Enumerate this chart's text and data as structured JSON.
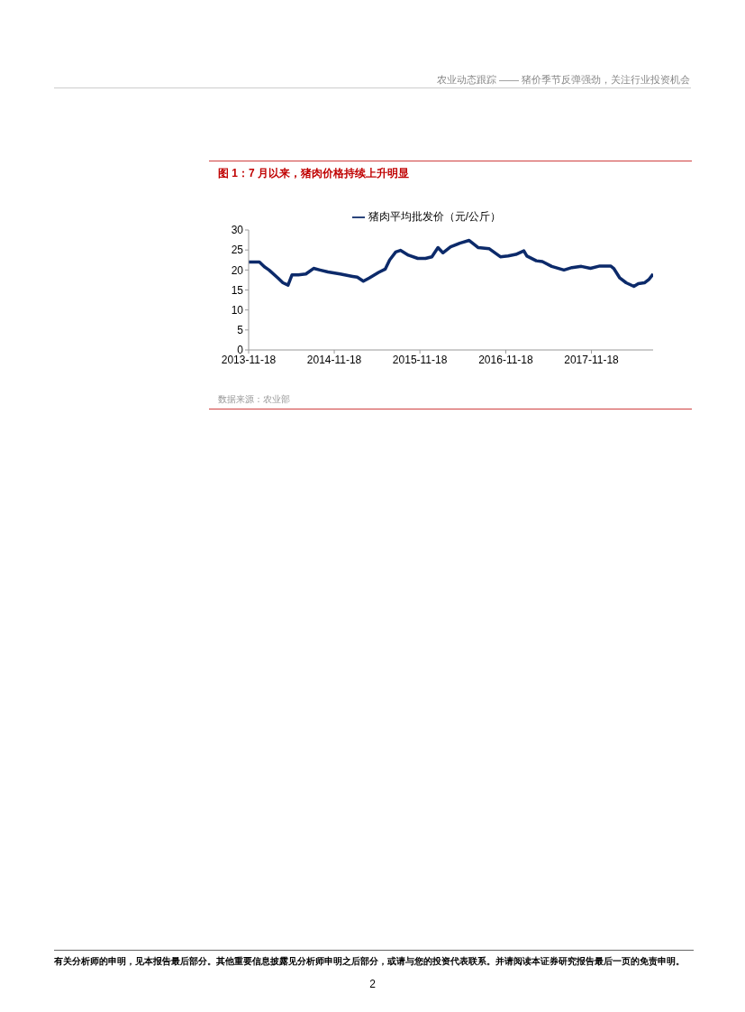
{
  "chart_data": {
    "type": "line",
    "title": "图 1：7 月以来，猪肉价格持续上升明显",
    "annotations": [
      "农业动态跟踪 —— 猪价季节反弹强劲，关注行业投资机会",
      "数据来源：农业部",
      "有关分析师的申明，见本报告最后部分。其他重要信息披露见分析师申明之后部分，或请与您的投资代表联系。并请阅读本证券研究报告最后一页的免责申明。",
      "2"
    ],
    "x": [
      "2013-11-18",
      "2014-01-03",
      "2014-01-24",
      "2014-02-13",
      "2014-03-23",
      "2014-04-13",
      "2014-05-05",
      "2014-05-22",
      "2014-06-18",
      "2014-07-20",
      "2014-08-22",
      "2014-09-18",
      "2014-10-22",
      "2014-12-13",
      "2015-02-04",
      "2015-02-24",
      "2015-03-22",
      "2015-04-16",
      "2015-05-26",
      "2015-06-23",
      "2015-07-12",
      "2015-08-07",
      "2015-08-27",
      "2015-09-30",
      "2015-11-09",
      "2015-12-12",
      "2016-01-08",
      "2016-02-03",
      "2016-02-24",
      "2016-03-28",
      "2016-05-06",
      "2016-06-15",
      "2016-07-24",
      "2016-09-09",
      "2016-10-26",
      "2016-11-28",
      "2016-12-31",
      "2017-02-03",
      "2017-02-16",
      "2017-03-28",
      "2017-04-23",
      "2017-06-02",
      "2017-07-24",
      "2017-08-27",
      "2017-10-06",
      "2017-11-14",
      "2017-12-24",
      "2018-02-08",
      "2018-02-21",
      "2018-03-19",
      "2018-04-15",
      "2018-05-18",
      "2018-06-06",
      "2018-07-02",
      "2018-07-22",
      "2018-08-08"
    ],
    "series": [
      {
        "name": "猪肉平均批发价（元/公斤）",
        "color": "#0c2a6a",
        "values": [
          22.0,
          22.0,
          20.8,
          20.0,
          18.0,
          16.8,
          16.2,
          18.8,
          18.8,
          19.0,
          20.4,
          20.0,
          19.5,
          19.0,
          18.4,
          18.2,
          17.2,
          18.0,
          19.4,
          20.2,
          22.5,
          24.5,
          24.9,
          23.7,
          22.9,
          22.9,
          23.3,
          25.6,
          24.3,
          25.8,
          26.7,
          27.4,
          25.6,
          25.3,
          23.3,
          23.5,
          23.9,
          24.8,
          23.5,
          22.3,
          22.1,
          20.9,
          20.0,
          20.6,
          20.9,
          20.4,
          21.0,
          21.0,
          20.4,
          18.0,
          16.8,
          15.9,
          16.6,
          16.8,
          17.7,
          19.0
        ]
      }
    ],
    "xlim": [
      "2013-11-18",
      "2018-08-08"
    ],
    "xticks": [
      "2013-11-18",
      "2014-11-18",
      "2015-11-18",
      "2016-11-18",
      "2017-11-18"
    ],
    "ylim": [
      0,
      30
    ],
    "yticks": [
      0,
      5,
      10,
      15,
      20,
      25,
      30
    ],
    "legend": "top",
    "marker": "none",
    "grid": false
  }
}
